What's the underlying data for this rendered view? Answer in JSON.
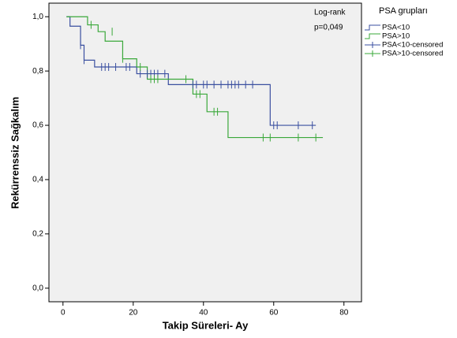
{
  "chart_data": {
    "type": "kaplan-meier",
    "x_label": "Takip Süreleri- Ay",
    "y_label": "Rekürrenssiz Sağkalım",
    "annotations": [
      "Log-rank",
      "p=0,049"
    ],
    "legend_title": "PSA grupları",
    "xlim": [
      -4,
      85
    ],
    "xticks": [
      0,
      20,
      40,
      60,
      80
    ],
    "ylim": [
      -0.05,
      1.05
    ],
    "yticks": [
      {
        "value": 0,
        "label": "0,0"
      },
      {
        "value": 0.2,
        "label": "0,2"
      },
      {
        "value": 0.4,
        "label": "0,4"
      },
      {
        "value": 0.6,
        "label": "0,6"
      },
      {
        "value": 0.8,
        "label": "0,8"
      },
      {
        "value": 1,
        "label": "1,0"
      }
    ],
    "series": [
      {
        "name": "PSA<10",
        "color": "#3a4fa0",
        "style": "step",
        "x": [
          1,
          2,
          5,
          6,
          9,
          21,
          30,
          59,
          72
        ],
        "values": [
          1,
          0.965,
          0.895,
          0.84,
          0.815,
          0.79,
          0.75,
          0.6,
          0.6
        ]
      },
      {
        "name": "PSA>10",
        "color": "#3aa83a",
        "style": "step",
        "x": [
          1,
          7,
          10,
          12,
          17,
          21,
          24,
          37,
          41,
          47,
          74
        ],
        "values": [
          1,
          0.97,
          0.945,
          0.91,
          0.845,
          0.815,
          0.77,
          0.715,
          0.65,
          0.555,
          0.555
        ]
      },
      {
        "name": "PSA<10-censored",
        "color": "#3a4fa0",
        "style": "censored",
        "x": [
          5,
          6,
          11,
          12,
          13,
          15,
          18,
          19,
          22,
          24,
          25,
          26,
          27,
          29,
          37,
          38,
          40,
          41,
          43,
          45,
          47,
          48,
          49,
          50,
          52,
          54,
          60,
          61,
          67,
          71
        ],
        "values": [
          0.895,
          0.84,
          0.815,
          0.815,
          0.815,
          0.815,
          0.815,
          0.815,
          0.79,
          0.79,
          0.79,
          0.79,
          0.79,
          0.79,
          0.75,
          0.75,
          0.75,
          0.75,
          0.75,
          0.75,
          0.75,
          0.75,
          0.75,
          0.75,
          0.75,
          0.75,
          0.6,
          0.6,
          0.6,
          0.6
        ]
      },
      {
        "name": "PSA>10-censored",
        "color": "#3aa83a",
        "style": "censored",
        "x": [
          8,
          14,
          17,
          22,
          25,
          26,
          27,
          35,
          38,
          39,
          43,
          44,
          57,
          59,
          67,
          72
        ],
        "values": [
          0.97,
          0.945,
          0.845,
          0.815,
          0.77,
          0.77,
          0.77,
          0.77,
          0.715,
          0.715,
          0.65,
          0.65,
          0.555,
          0.555,
          0.555,
          0.555
        ]
      }
    ]
  }
}
